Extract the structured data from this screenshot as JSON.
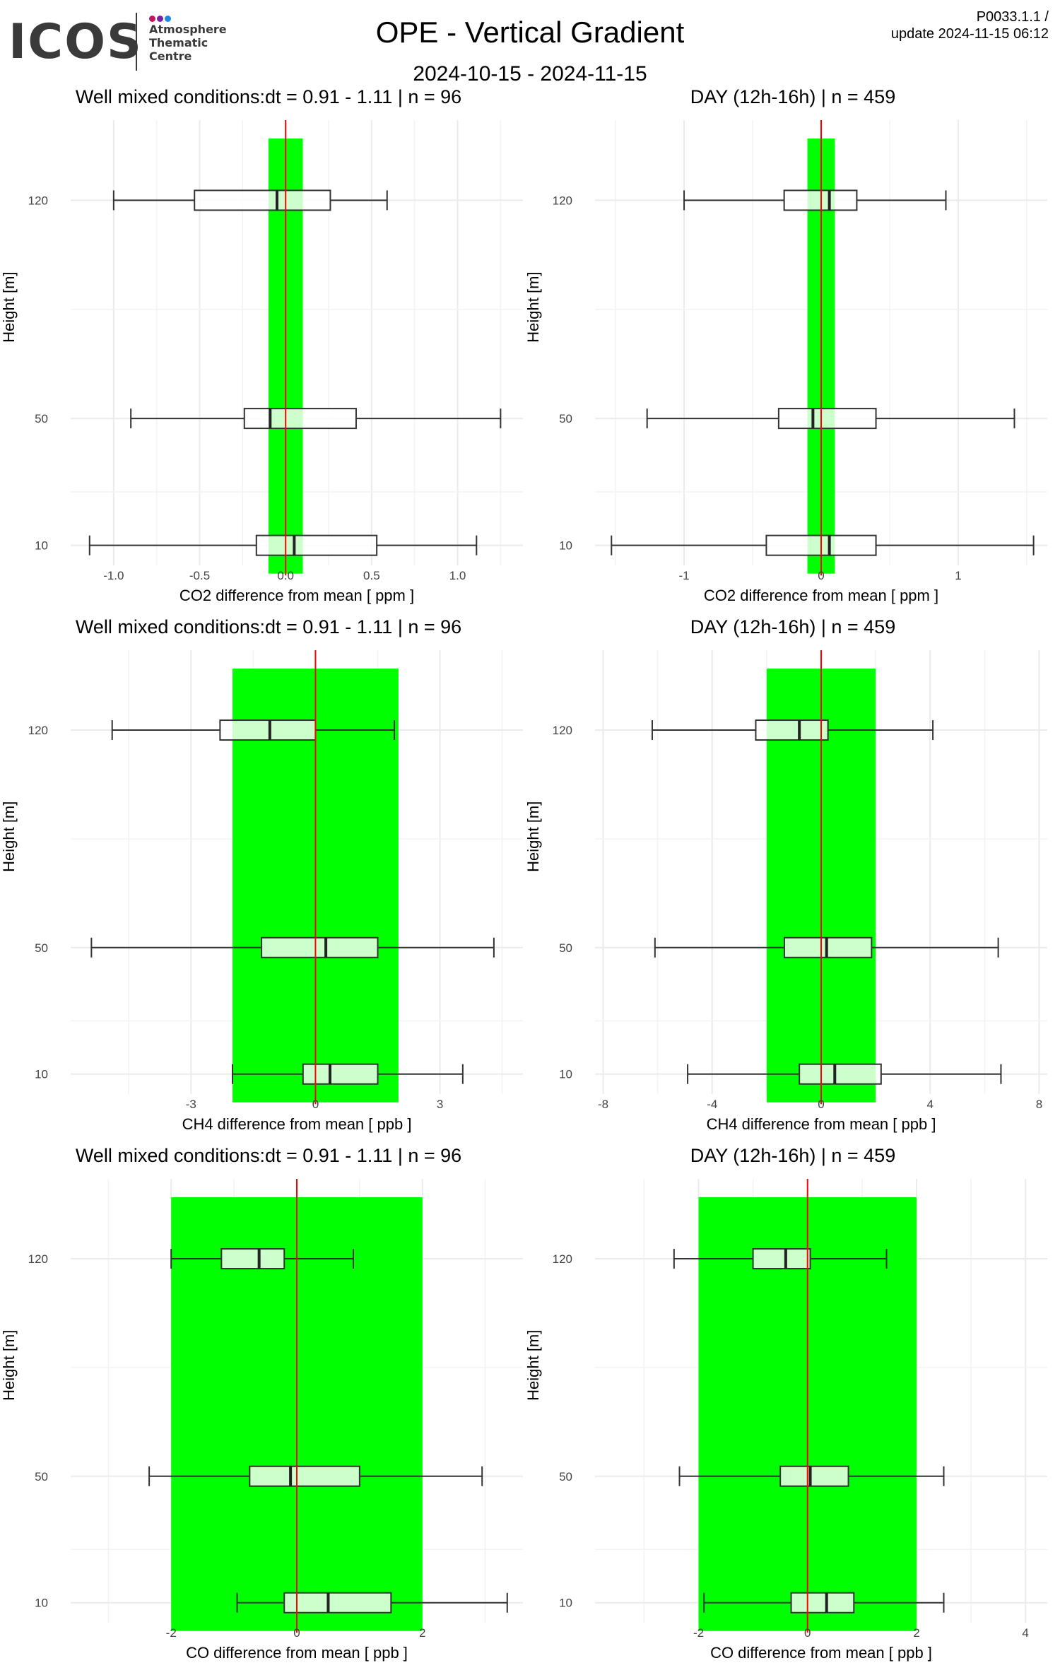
{
  "header": {
    "logo_text": "ICOS",
    "logo_lines": [
      "Atmosphere",
      "Thematic",
      "Centre"
    ],
    "logo_dot_colors": [
      "#c2185b",
      "#7b1fa2",
      "#1e88e5"
    ],
    "title": "OPE - Vertical Gradient",
    "date_range": "2024-10-15 - 2024-11-15",
    "version": "P0033.1.1 /",
    "update": "update  2024-11-15 06:12"
  },
  "colors": {
    "band": "#00ff00",
    "zero_line": "#ff0000",
    "box_fill_overlay": "#ffffff",
    "grid": "#ebebeb"
  },
  "chart_data": [
    {
      "type": "boxplot",
      "title": "Well mixed conditions:dt = 0.91 - 1.11 | n = 96",
      "xlabel": "CO2  difference from mean [ ppm ]",
      "ylabel": "Height [m]",
      "xlim": [
        -1.25,
        1.38
      ],
      "xticks": [
        -1.0,
        -0.5,
        0.0,
        0.5,
        1.0
      ],
      "xtick_labels": [
        "-1.0",
        "-0.5",
        "0.0",
        "0.5",
        "1.0"
      ],
      "band": [
        -0.1,
        0.1
      ],
      "categories": [
        "120",
        "50",
        "10"
      ],
      "boxes": [
        {
          "height": "120",
          "min": -1.0,
          "q1": -0.53,
          "median": -0.05,
          "q3": 0.26,
          "max": 0.59
        },
        {
          "height": "50",
          "min": -0.9,
          "q1": -0.24,
          "median": -0.09,
          "q3": 0.41,
          "max": 1.25
        },
        {
          "height": "10",
          "min": -1.14,
          "q1": -0.17,
          "median": 0.05,
          "q3": 0.53,
          "max": 1.11
        }
      ]
    },
    {
      "type": "boxplot",
      "title": "DAY (12h-16h) | n = 459",
      "xlabel": "CO2  difference from mean [ ppm ]",
      "ylabel": "Height [m]",
      "xlim": [
        -1.65,
        1.65
      ],
      "xticks": [
        -1,
        0,
        1
      ],
      "xtick_labels": [
        "-1",
        "0",
        "1"
      ],
      "band": [
        -0.1,
        0.1
      ],
      "categories": [
        "120",
        "50",
        "10"
      ],
      "boxes": [
        {
          "height": "120",
          "min": -1.0,
          "q1": -0.27,
          "median": 0.06,
          "q3": 0.26,
          "max": 0.91
        },
        {
          "height": "50",
          "min": -1.27,
          "q1": -0.31,
          "median": -0.06,
          "q3": 0.4,
          "max": 1.41
        },
        {
          "height": "10",
          "min": -1.53,
          "q1": -0.4,
          "median": 0.06,
          "q3": 0.4,
          "max": 1.55
        }
      ]
    },
    {
      "type": "boxplot",
      "title": "Well mixed conditions:dt = 0.91 - 1.11 | n = 96",
      "xlabel": "CH4  difference from mean [ ppb ]",
      "ylabel": "Height [m]",
      "xlim": [
        -5.9,
        5.0
      ],
      "xticks": [
        -3,
        0,
        3
      ],
      "xtick_labels": [
        "-3",
        "0",
        "3"
      ],
      "band": [
        -2,
        2
      ],
      "categories": [
        "120",
        "50",
        "10"
      ],
      "boxes": [
        {
          "height": "120",
          "min": -4.9,
          "q1": -2.3,
          "median": -1.1,
          "q3": 0.0,
          "max": 1.9
        },
        {
          "height": "50",
          "min": -5.4,
          "q1": -1.3,
          "median": 0.25,
          "q3": 1.5,
          "max": 4.3
        },
        {
          "height": "10",
          "min": -2.0,
          "q1": -0.3,
          "median": 0.35,
          "q3": 1.5,
          "max": 3.55
        }
      ]
    },
    {
      "type": "boxplot",
      "title": "DAY (12h-16h) | n = 459",
      "xlabel": "CH4  difference from mean [ ppb ]",
      "ylabel": "Height [m]",
      "xlim": [
        -8.3,
        8.3
      ],
      "xticks": [
        -8,
        -4,
        0,
        4,
        8
      ],
      "xtick_labels": [
        "-8",
        "-4",
        "0",
        "4",
        "8"
      ],
      "band": [
        -2,
        2
      ],
      "categories": [
        "120",
        "50",
        "10"
      ],
      "boxes": [
        {
          "height": "120",
          "min": -6.2,
          "q1": -2.4,
          "median": -0.8,
          "q3": 0.25,
          "max": 4.1
        },
        {
          "height": "50",
          "min": -6.1,
          "q1": -1.35,
          "median": 0.2,
          "q3": 1.85,
          "max": 6.5
        },
        {
          "height": "10",
          "min": -4.9,
          "q1": -0.8,
          "median": 0.5,
          "q3": 2.2,
          "max": 6.6
        }
      ]
    },
    {
      "type": "boxplot",
      "title": "Well mixed conditions:dt = 0.91 - 1.11 | n = 96",
      "xlabel": "CO  difference from mean [ ppb ]",
      "ylabel": "Height [m]",
      "xlim": [
        -3.6,
        3.6
      ],
      "xticks": [
        -2,
        0,
        2
      ],
      "xtick_labels": [
        "-2",
        "0",
        "2"
      ],
      "band": [
        -2,
        2
      ],
      "categories": [
        "120",
        "50",
        "10"
      ],
      "boxes": [
        {
          "height": "120",
          "min": -2.0,
          "q1": -1.2,
          "median": -0.6,
          "q3": -0.2,
          "max": 0.9
        },
        {
          "height": "50",
          "min": -2.35,
          "q1": -0.75,
          "median": -0.1,
          "q3": 1.0,
          "max": 2.95
        },
        {
          "height": "10",
          "min": -0.95,
          "q1": -0.2,
          "median": 0.5,
          "q3": 1.5,
          "max": 3.35
        }
      ]
    },
    {
      "type": "boxplot",
      "title": "DAY (12h-16h) | n = 459",
      "xlabel": "CO  difference from mean [ ppb ]",
      "ylabel": "Height [m]",
      "xlim": [
        -3.9,
        4.4
      ],
      "xticks": [
        -2,
        0,
        2,
        4
      ],
      "xtick_labels": [
        "-2",
        "0",
        "2",
        "4"
      ],
      "band": [
        -2,
        2
      ],
      "categories": [
        "120",
        "50",
        "10"
      ],
      "boxes": [
        {
          "height": "120",
          "min": -2.45,
          "q1": -1.0,
          "median": -0.4,
          "q3": 0.05,
          "max": 1.45
        },
        {
          "height": "50",
          "min": -2.35,
          "q1": -0.5,
          "median": 0.05,
          "q3": 0.75,
          "max": 2.5
        },
        {
          "height": "10",
          "min": -1.9,
          "q1": -0.3,
          "median": 0.35,
          "q3": 0.85,
          "max": 2.5
        }
      ]
    }
  ]
}
